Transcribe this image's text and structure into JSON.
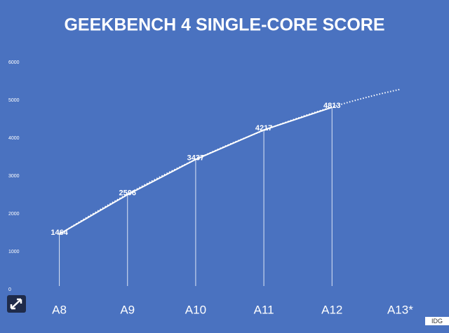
{
  "chart_data": {
    "type": "line",
    "title": "GEEKBENCH 4 SINGLE-CORE SCORE",
    "categories": [
      "A8",
      "A9",
      "A10",
      "A11",
      "A12",
      "A13*"
    ],
    "values": [
      1464,
      2506,
      3437,
      4217,
      4813,
      null
    ],
    "color": "#ffffff",
    "background": "#4a72c0",
    "ylim": [
      0,
      6000
    ],
    "yticks": [
      0,
      1000,
      2000,
      3000,
      4000,
      5000,
      6000
    ],
    "trendline": "polynomial",
    "drop_lines": true,
    "credit": "IDG"
  }
}
